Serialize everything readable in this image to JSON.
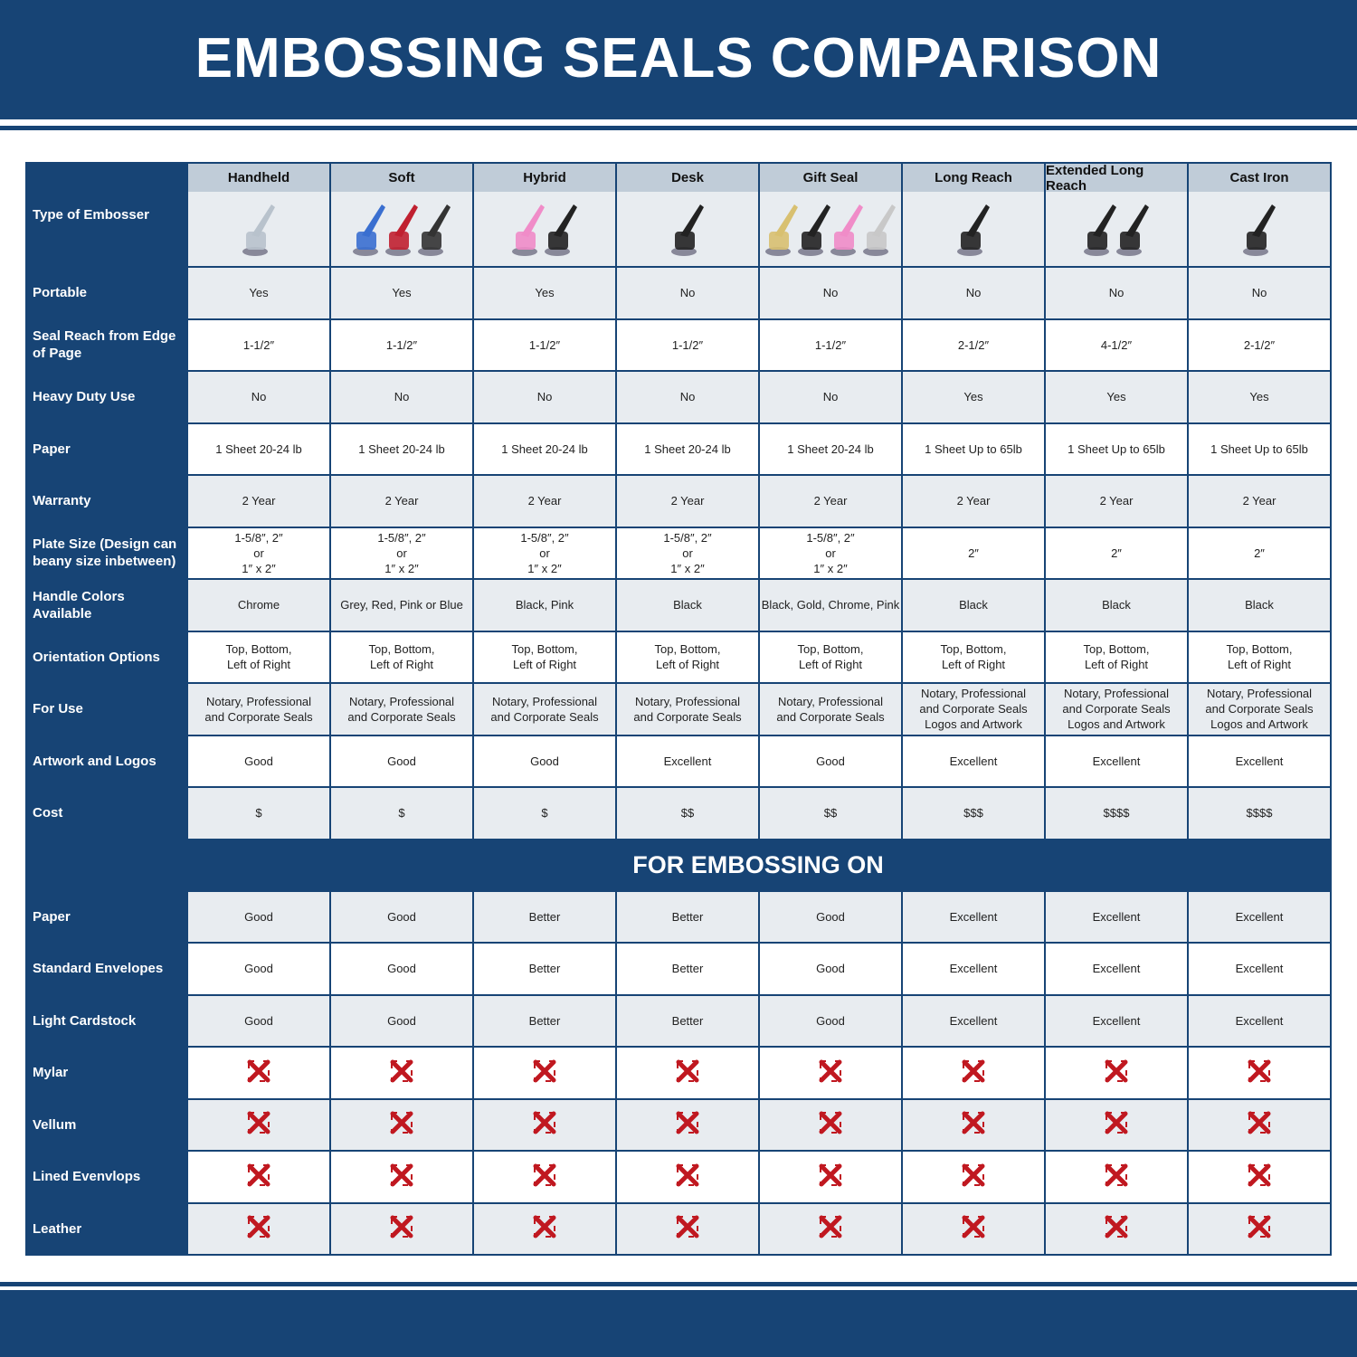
{
  "title": "EMBOSSING SEALS COMPARISON",
  "corner_label": "Type of Embosser",
  "columns": [
    "Handheld",
    "Soft",
    "Hybrid",
    "Desk",
    "Gift Seal",
    "Long Reach",
    "Extended Long Reach",
    "Cast Iron"
  ],
  "rows": [
    {
      "label": "Portable",
      "values": [
        "Yes",
        "Yes",
        "Yes",
        "No",
        "No",
        "No",
        "No",
        "No"
      ]
    },
    {
      "label": "Seal Reach from Edge of Page",
      "values": [
        "1-1/2″",
        "1-1/2″",
        "1-1/2″",
        "1-1/2″",
        "1-1/2″",
        "2-1/2″",
        "4-1/2″",
        "2-1/2″"
      ]
    },
    {
      "label": "Heavy Duty Use",
      "values": [
        "No",
        "No",
        "No",
        "No",
        "No",
        "Yes",
        "Yes",
        "Yes"
      ]
    },
    {
      "label": "Paper",
      "values": [
        "1 Sheet 20-24 lb",
        "1 Sheet 20-24 lb",
        "1 Sheet 20-24 lb",
        "1 Sheet 20-24 lb",
        "1 Sheet 20-24 lb",
        "1 Sheet Up to 65lb",
        "1 Sheet Up to 65lb",
        "1 Sheet Up to 65lb"
      ]
    },
    {
      "label": "Warranty",
      "values": [
        "2 Year",
        "2 Year",
        "2 Year",
        "2 Year",
        "2 Year",
        "2 Year",
        "2 Year",
        "2 Year"
      ]
    },
    {
      "label": "Plate Size (Design can beany size inbetween)",
      "values": [
        "1-5/8″, 2″\nor\n1″ x 2″",
        "1-5/8″, 2″\nor\n1″ x 2″",
        "1-5/8″, 2″\nor\n1″ x 2″",
        "1-5/8″, 2″\nor\n1″ x 2″",
        "1-5/8″, 2″\nor\n1″ x 2″",
        "2″",
        "2″",
        "2″"
      ]
    },
    {
      "label": "Handle Colors Available",
      "values": [
        "Chrome",
        "Grey, Red, Pink or Blue",
        "Black, Pink",
        "Black",
        "Black, Gold, Chrome, Pink",
        "Black",
        "Black",
        "Black"
      ]
    },
    {
      "label": "Orientation Options",
      "values": [
        "Top, Bottom,\nLeft of Right",
        "Top, Bottom,\nLeft of Right",
        "Top, Bottom,\nLeft of Right",
        "Top, Bottom,\nLeft of Right",
        "Top, Bottom,\nLeft of Right",
        "Top, Bottom,\nLeft of Right",
        "Top, Bottom,\nLeft of Right",
        "Top, Bottom,\nLeft of Right"
      ]
    },
    {
      "label": "For Use",
      "values": [
        "Notary, Professional\nand Corporate Seals",
        "Notary, Professional\nand Corporate Seals",
        "Notary, Professional\nand Corporate Seals",
        "Notary, Professional\nand Corporate Seals",
        "Notary, Professional\nand Corporate Seals",
        "Notary, Professional\nand Corporate Seals\nLogos and Artwork",
        "Notary, Professional\nand Corporate Seals\nLogos and Artwork",
        "Notary, Professional\nand Corporate Seals\nLogos and Artwork"
      ]
    },
    {
      "label": "Artwork and Logos",
      "values": [
        "Good",
        "Good",
        "Good",
        "Excellent",
        "Good",
        "Excellent",
        "Excellent",
        "Excellent"
      ]
    },
    {
      "label": "Cost",
      "values": [
        "$",
        "$",
        "$",
        "$$",
        "$$",
        "$$$",
        "$$$$",
        "$$$$"
      ]
    }
  ],
  "section_title": "FOR EMBOSSING ON",
  "section_rows": [
    {
      "label": "Paper",
      "values": [
        "Good",
        "Good",
        "Better",
        "Better",
        "Good",
        "Excellent",
        "Excellent",
        "Excellent"
      ]
    },
    {
      "label": "Standard Envelopes",
      "values": [
        "Good",
        "Good",
        "Better",
        "Better",
        "Good",
        "Excellent",
        "Excellent",
        "Excellent"
      ]
    },
    {
      "label": "Light Cardstock",
      "values": [
        "Good",
        "Good",
        "Better",
        "Better",
        "Good",
        "Excellent",
        "Excellent",
        "Excellent"
      ]
    },
    {
      "label": "Mylar",
      "values": [
        "x",
        "x",
        "x",
        "x",
        "x",
        "x",
        "x",
        "x"
      ]
    },
    {
      "label": "Vellum",
      "values": [
        "x",
        "x",
        "x",
        "x",
        "x",
        "x",
        "x",
        "x"
      ]
    },
    {
      "label": "Lined Evenvlops",
      "values": [
        "x",
        "x",
        "x",
        "x",
        "x",
        "x",
        "x",
        "x"
      ]
    },
    {
      "label": "Leather",
      "values": [
        "x",
        "x",
        "x",
        "x",
        "x",
        "x",
        "x",
        "x"
      ]
    }
  ],
  "product_images": [
    [
      "#b8c2cc"
    ],
    [
      "#3a6fd0",
      "#c02030",
      "#333"
    ],
    [
      "#f08cc8",
      "#222"
    ],
    [
      "#222"
    ],
    [
      "#d8c070",
      "#222",
      "#f08cc8",
      "#c8c8c8"
    ],
    [
      "#222"
    ],
    [
      "#222",
      "#222"
    ],
    [
      "#222"
    ]
  ],
  "colors": {
    "brand": "#174475",
    "header_cell": "#c0ccd8",
    "row_alt": "#e8ecf0",
    "x_mark": "#c01820"
  },
  "icons": {
    "not_supported": "red-x-icon"
  }
}
